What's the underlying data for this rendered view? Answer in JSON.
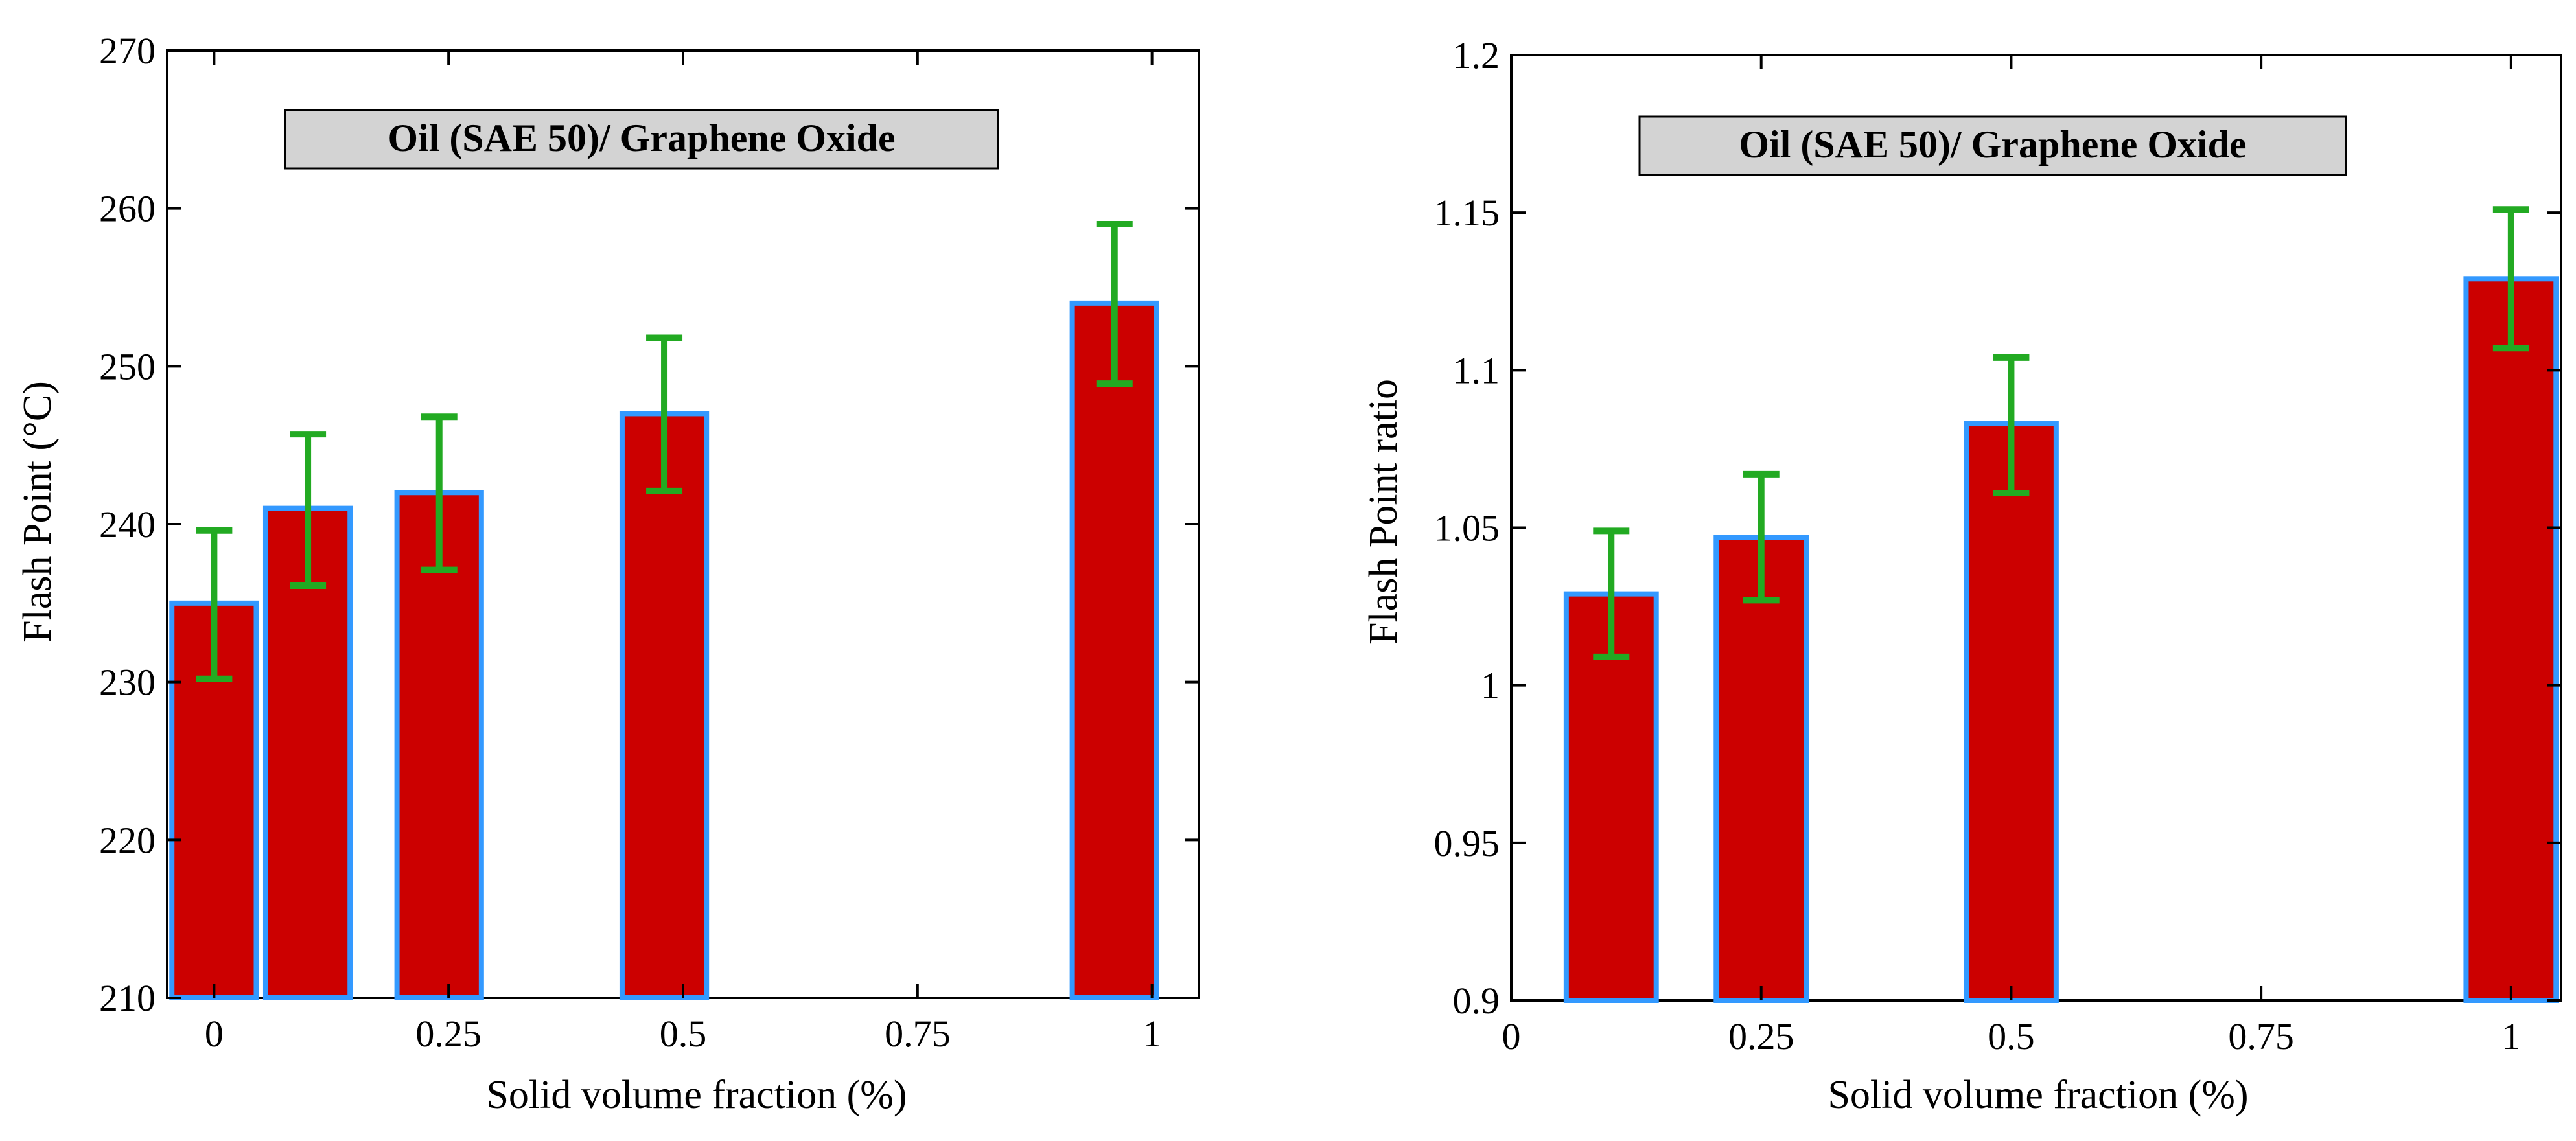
{
  "chart_data": [
    {
      "type": "bar",
      "title": "Oil (SAE 50)/ Graphene Oxide",
      "xlabel": "Solid volume fraction (%)",
      "ylabel": "Flash Point (°C)",
      "xlim": [
        -0.05,
        1.05
      ],
      "ylim": [
        210,
        270
      ],
      "xticks": [
        0,
        0.25,
        0.5,
        0.75,
        1
      ],
      "xtick_labels": [
        "0",
        "0.25",
        "0.5",
        "0.75",
        "1"
      ],
      "yticks": [
        210,
        220,
        230,
        240,
        250,
        260,
        270
      ],
      "ytick_labels": [
        "210",
        "220",
        "230",
        "240",
        "250",
        "260",
        "270"
      ],
      "grid": false,
      "bar_width": 0.09,
      "x": [
        0,
        0.1,
        0.24,
        0.48,
        0.96
      ],
      "values": [
        235,
        241,
        242,
        247,
        254
      ],
      "error_low": [
        230.2,
        236.1,
        237.1,
        242.1,
        248.9
      ],
      "error_high": [
        239.6,
        245.7,
        246.8,
        251.8,
        259
      ],
      "colors": {
        "bar_fill": "#cc0000",
        "bar_edge": "#3399ff",
        "error_bar": "#22aa22",
        "title_box": "#d3d3d3"
      }
    },
    {
      "type": "bar",
      "title": "Oil (SAE 50)/ Graphene Oxide",
      "xlabel": "Solid volume fraction (%)",
      "ylabel": "Flash Point ratio",
      "xlim": [
        0,
        1.05
      ],
      "ylim": [
        0.9,
        1.2
      ],
      "xticks": [
        0,
        0.25,
        0.5,
        0.75,
        1
      ],
      "xtick_labels": [
        "0",
        "0.25",
        "0.5",
        "0.75",
        "1"
      ],
      "yticks": [
        0.9,
        0.95,
        1,
        1.05,
        1.1,
        1.15,
        1.2
      ],
      "ytick_labels": [
        "0.9",
        "0.95",
        "1",
        "1.05",
        "1.1",
        "1.15",
        "1.2"
      ],
      "grid": false,
      "bar_width": 0.09,
      "x": [
        0.1,
        0.25,
        0.5,
        1
      ],
      "values": [
        1.029,
        1.047,
        1.083,
        1.129
      ],
      "error_low": [
        1.009,
        1.027,
        1.061,
        1.107
      ],
      "error_high": [
        1.049,
        1.067,
        1.104,
        1.151
      ],
      "colors": {
        "bar_fill": "#cc0000",
        "bar_edge": "#3399ff",
        "error_bar": "#22aa22",
        "title_box": "#d3d3d3"
      }
    }
  ]
}
